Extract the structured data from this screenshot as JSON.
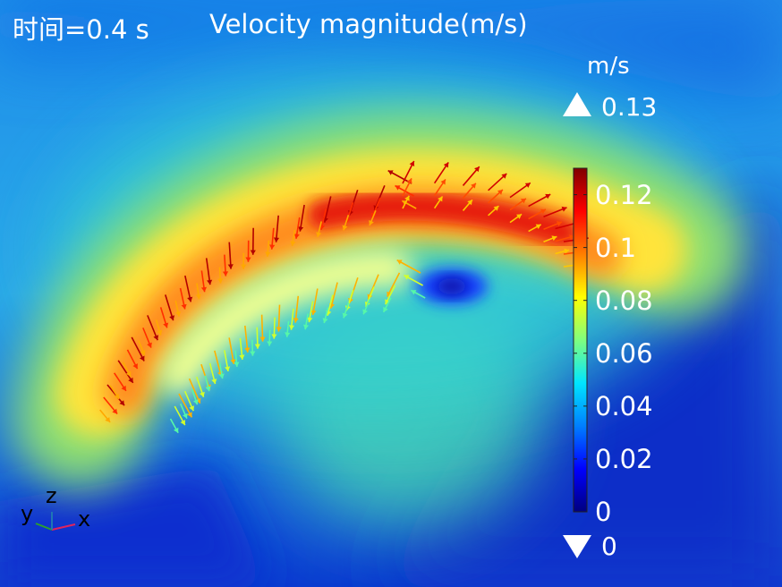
{
  "header": {
    "time_label": "时间=0.4 s",
    "title": "Velocity magnitude(m/s)"
  },
  "chart_data": {
    "type": "heatmap",
    "quantity": "Velocity magnitude",
    "time": 0.4,
    "colorbar": {
      "unit": "m/s",
      "max_label": "0.13",
      "min_label": "0",
      "range": [
        0,
        0.13
      ],
      "tick_values": [
        0,
        0.02,
        0.04,
        0.06,
        0.08,
        0.1,
        0.12
      ],
      "tick_labels": [
        "0",
        "0.02",
        "0.04",
        "0.06",
        "0.08",
        "0.1",
        "0.12"
      ],
      "colormap": [
        "#00007f",
        "#0000ff",
        "#007fff",
        "#00e5ff",
        "#7fff7f",
        "#ffff00",
        "#ff7f00",
        "#ff0000",
        "#7f0000"
      ]
    },
    "arrows": "velocity field arrows"
  },
  "axes_triad": {
    "labels": [
      "y",
      "z",
      "x"
    ],
    "colors": {
      "x": "#e0245e",
      "y": "#2ca02c",
      "z": "#1f77b4"
    }
  }
}
